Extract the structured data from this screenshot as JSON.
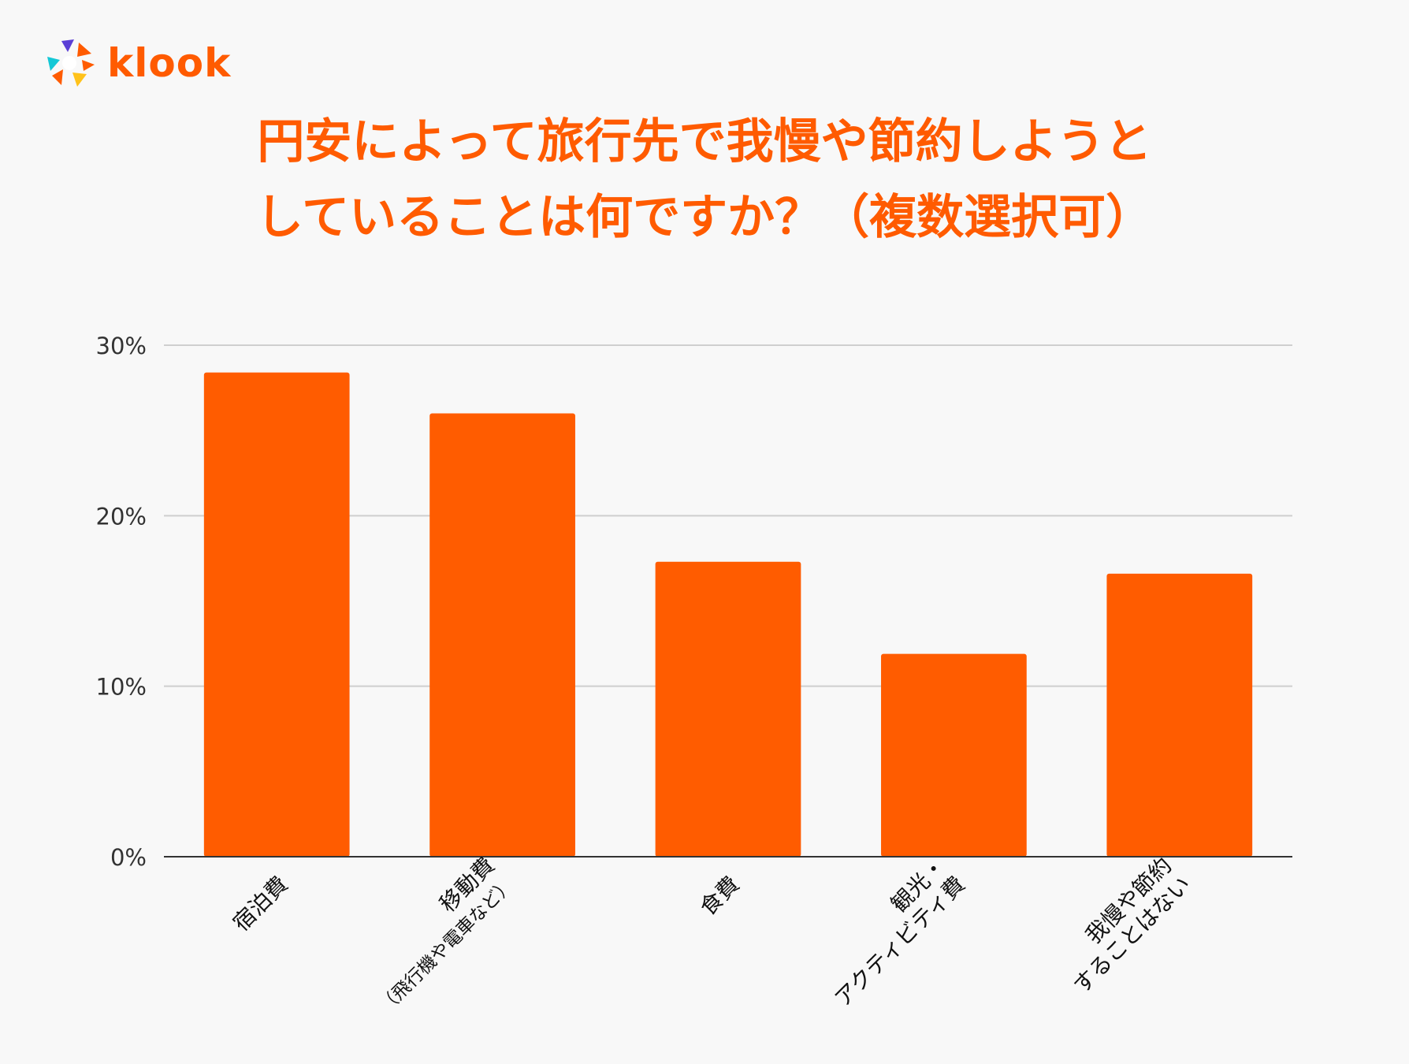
{
  "logo": {
    "name": "klook",
    "icon": "klook-logo-icon"
  },
  "title_lines": [
    "円安によって旅行先で我慢や節約しようと",
    "していることは何ですか？（複数選択可）"
  ],
  "colors": {
    "accent": "#ff5b00",
    "bar": "#ff5c00",
    "grid": "#cfcfcf",
    "axis": "#333333"
  },
  "chart_data": {
    "type": "bar",
    "title": "円安によって旅行先で我慢や節約しようとしていることは何ですか？（複数選択可）",
    "categories": [
      [
        "宿泊費"
      ],
      [
        "移動費",
        "（飛行機や電車など）"
      ],
      [
        "食費"
      ],
      [
        "観光・",
        "アクティビティ費"
      ],
      [
        "我慢や節約",
        "することはない"
      ]
    ],
    "values": [
      28.4,
      26.0,
      17.3,
      11.9,
      16.6
    ],
    "ylim": [
      0,
      30
    ],
    "yticks": [
      0,
      10,
      20,
      30
    ],
    "ytick_labels": [
      "0%",
      "10%",
      "20%",
      "30%"
    ],
    "xlabel": "",
    "ylabel": "",
    "grid": true,
    "legend": "none"
  }
}
